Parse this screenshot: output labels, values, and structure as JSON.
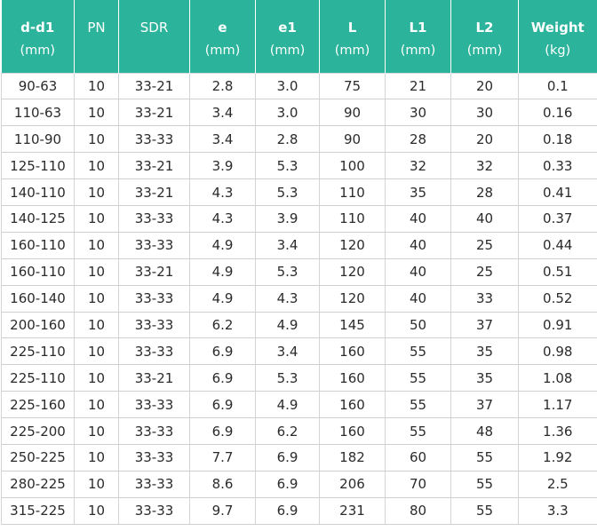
{
  "table": {
    "headers": [
      {
        "name": "d-d1",
        "unit": "(mm)"
      },
      {
        "name": "PN",
        "unit": ""
      },
      {
        "name": "SDR",
        "unit": ""
      },
      {
        "name": "e",
        "unit": "(mm)"
      },
      {
        "name": "e1",
        "unit": "(mm)"
      },
      {
        "name": "L",
        "unit": "(mm)"
      },
      {
        "name": "L1",
        "unit": "(mm)"
      },
      {
        "name": "L2",
        "unit": "(mm)"
      },
      {
        "name": "Weight",
        "unit": "(kg)"
      }
    ],
    "rows": [
      [
        "90-63",
        "10",
        "33-21",
        "2.8",
        "3.0",
        "75",
        "21",
        "20",
        "0.1"
      ],
      [
        "110-63",
        "10",
        "33-21",
        "3.4",
        "3.0",
        "90",
        "30",
        "30",
        "0.16"
      ],
      [
        "110-90",
        "10",
        "33-33",
        "3.4",
        "2.8",
        "90",
        "28",
        "20",
        "0.18"
      ],
      [
        "125-110",
        "10",
        "33-21",
        "3.9",
        "5.3",
        "100",
        "32",
        "32",
        "0.33"
      ],
      [
        "140-110",
        "10",
        "33-21",
        "4.3",
        "5.3",
        "110",
        "35",
        "28",
        "0.41"
      ],
      [
        "140-125",
        "10",
        "33-33",
        "4.3",
        "3.9",
        "110",
        "40",
        "40",
        "0.37"
      ],
      [
        "160-110",
        "10",
        "33-33",
        "4.9",
        "3.4",
        "120",
        "40",
        "25",
        "0.44"
      ],
      [
        "160-110",
        "10",
        "33-21",
        "4.9",
        "5.3",
        "120",
        "40",
        "25",
        "0.51"
      ],
      [
        "160-140",
        "10",
        "33-33",
        "4.9",
        "4.3",
        "120",
        "40",
        "33",
        "0.52"
      ],
      [
        "200-160",
        "10",
        "33-33",
        "6.2",
        "4.9",
        "145",
        "50",
        "37",
        "0.91"
      ],
      [
        "225-110",
        "10",
        "33-33",
        "6.9",
        "3.4",
        "160",
        "55",
        "35",
        "0.98"
      ],
      [
        "225-110",
        "10",
        "33-21",
        "6.9",
        "5.3",
        "160",
        "55",
        "35",
        "1.08"
      ],
      [
        "225-160",
        "10",
        "33-33",
        "6.9",
        "4.9",
        "160",
        "55",
        "37",
        "1.17"
      ],
      [
        "225-200",
        "10",
        "33-33",
        "6.9",
        "6.2",
        "160",
        "55",
        "48",
        "1.36"
      ],
      [
        "250-225",
        "10",
        "33-33",
        "7.7",
        "6.9",
        "182",
        "60",
        "55",
        "1.92"
      ],
      [
        "280-225",
        "10",
        "33-33",
        "8.6",
        "6.9",
        "206",
        "70",
        "55",
        "2.5"
      ],
      [
        "315-225",
        "10",
        "33-33",
        "9.7",
        "6.9",
        "231",
        "80",
        "55",
        "3.3"
      ]
    ]
  },
  "colors": {
    "header_bg": "#2bb39b",
    "header_text": "#ffffff",
    "body_text": "#2b2b2b",
    "grid": "#d4d4d4"
  }
}
